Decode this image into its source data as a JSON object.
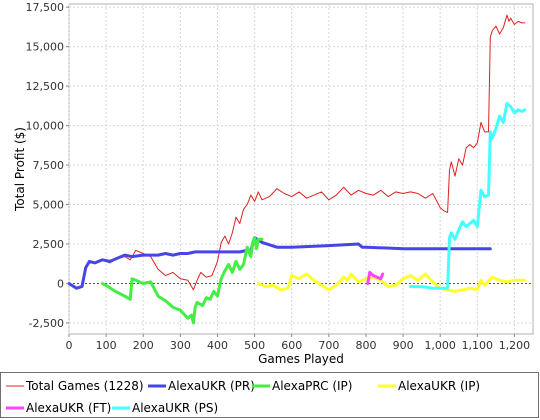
{
  "chart_data": {
    "type": "line",
    "title": "",
    "xlabel": "Games Played",
    "ylabel": "Total Profit ($)",
    "xlim": [
      0,
      1250
    ],
    "ylim": [
      -3200,
      17700
    ],
    "x_ticks": [
      0,
      100,
      200,
      300,
      400,
      500,
      600,
      700,
      800,
      900,
      1000,
      1100,
      1200
    ],
    "x_tick_labels": [
      "0",
      "100",
      "200",
      "300",
      "400",
      "500",
      "600",
      "700",
      "800",
      "900",
      "1,000",
      "1,100",
      "1,200"
    ],
    "y_ticks": [
      -2500,
      0,
      2500,
      5000,
      7500,
      10000,
      12500,
      15000,
      17500
    ],
    "y_tick_labels": [
      "-2,500",
      "0",
      "2,500",
      "5,000",
      "7,500",
      "10,000",
      "12,500",
      "15,000",
      "17,500"
    ],
    "grid": true,
    "zero_line_color": "#4040ff",
    "legend_position": "bottom",
    "series": [
      {
        "name": "Total Games (1228)",
        "color": "#e02020",
        "x": [
          0,
          20,
          35,
          45,
          55,
          70,
          90,
          110,
          130,
          150,
          165,
          180,
          200,
          220,
          240,
          260,
          280,
          300,
          320,
          335,
          345,
          355,
          370,
          385,
          400,
          410,
          420,
          430,
          440,
          450,
          460,
          470,
          480,
          490,
          500,
          510,
          520,
          540,
          560,
          580,
          600,
          620,
          640,
          660,
          680,
          700,
          720,
          740,
          760,
          780,
          800,
          820,
          840,
          860,
          880,
          900,
          920,
          940,
          960,
          980,
          1000,
          1010,
          1020,
          1025,
          1030,
          1040,
          1050,
          1060,
          1070,
          1080,
          1090,
          1100,
          1110,
          1120,
          1130,
          1135,
          1140,
          1150,
          1160,
          1170,
          1180,
          1185,
          1190,
          1200,
          1210,
          1220,
          1228
        ],
        "values": [
          0,
          -300,
          -200,
          1000,
          1400,
          1300,
          1500,
          1300,
          1600,
          1700,
          1500,
          2100,
          1900,
          1700,
          900,
          500,
          700,
          300,
          200,
          -400,
          200,
          700,
          400,
          500,
          1400,
          2600,
          3000,
          2500,
          3200,
          4200,
          3800,
          4700,
          5000,
          5600,
          5200,
          5800,
          5300,
          5500,
          6000,
          5700,
          5500,
          5800,
          5400,
          5600,
          5800,
          5300,
          5600,
          6100,
          5600,
          5900,
          5700,
          5600,
          5900,
          5500,
          5800,
          5700,
          5800,
          5700,
          5400,
          5700,
          4800,
          4600,
          4500,
          7200,
          7700,
          6800,
          7900,
          7500,
          8600,
          8800,
          8600,
          8900,
          10200,
          9600,
          9600,
          15600,
          16000,
          16300,
          15800,
          16200,
          17000,
          16600,
          16800,
          16400,
          16600,
          16500,
          16500
        ]
      },
      {
        "name": "AlexaUKR (PR)",
        "color": "#4646e8",
        "x": [
          0,
          20,
          35,
          45,
          55,
          70,
          90,
          110,
          130,
          150,
          170,
          200,
          240,
          260,
          280,
          300,
          320,
          340,
          360,
          380,
          400,
          420,
          440,
          460,
          480,
          490,
          500,
          520,
          560,
          600,
          700,
          780,
          790,
          800,
          900,
          1000,
          1100,
          1135
        ],
        "values": [
          0,
          -300,
          -200,
          1000,
          1400,
          1300,
          1500,
          1400,
          1600,
          1800,
          1700,
          1800,
          1800,
          1900,
          1800,
          1900,
          1900,
          2000,
          2000,
          2000,
          2000,
          2000,
          2000,
          2000,
          2100,
          2100,
          2900,
          2600,
          2300,
          2300,
          2400,
          2500,
          2300,
          2300,
          2200,
          2200,
          2200,
          2200
        ]
      },
      {
        "name": "AlexaPRC (IP)",
        "color": "#44ee44",
        "x": [
          90,
          105,
          125,
          150,
          165,
          170,
          180,
          200,
          220,
          240,
          260,
          280,
          300,
          320,
          330,
          335,
          340,
          345,
          360,
          370,
          380,
          390,
          400,
          410,
          420,
          430,
          440,
          450,
          460,
          470,
          480,
          490,
          495,
          500,
          505,
          510,
          520
        ],
        "values": [
          0,
          -200,
          -500,
          -800,
          -1000,
          300,
          200,
          0,
          100,
          -800,
          -1100,
          -1500,
          -1700,
          -2200,
          -2000,
          -2500,
          -1500,
          -1200,
          -1400,
          -900,
          -1000,
          -500,
          -800,
          300,
          800,
          1200,
          700,
          1400,
          900,
          1200,
          2300,
          1700,
          2600,
          2900,
          2200,
          2800,
          2800
        ]
      },
      {
        "name": "AlexaUKR (IP)",
        "color": "#ffff30",
        "x": [
          510,
          530,
          550,
          570,
          590,
          600,
          620,
          640,
          660,
          680,
          700,
          720,
          740,
          750,
          760,
          780,
          800,
          820,
          840,
          860,
          880,
          900,
          920,
          940,
          960,
          980,
          1000,
          1020,
          1040,
          1060,
          1080,
          1100,
          1110,
          1120,
          1140,
          1160,
          1180,
          1200,
          1228
        ],
        "values": [
          0,
          -200,
          -100,
          -400,
          -300,
          500,
          300,
          600,
          200,
          -100,
          -400,
          -100,
          400,
          200,
          600,
          100,
          300,
          400,
          200,
          -200,
          -100,
          300,
          500,
          200,
          600,
          100,
          -300,
          -400,
          -500,
          -400,
          -300,
          -400,
          200,
          -100,
          400,
          200,
          100,
          200,
          200
        ]
      },
      {
        "name": "AlexaUKR (FT)",
        "color": "#ff44ff",
        "x": [
          805,
          810,
          820,
          830,
          840,
          845
        ],
        "values": [
          0,
          700,
          500,
          400,
          300,
          600
        ]
      },
      {
        "name": "AlexaUKR (PS)",
        "color": "#44ffff",
        "x": [
          920,
          950,
          980,
          1000,
          1020,
          1025,
          1030,
          1040,
          1050,
          1060,
          1070,
          1080,
          1090,
          1100,
          1110,
          1120,
          1130,
          1135,
          1140,
          1150,
          1160,
          1170,
          1180,
          1190,
          1200,
          1210,
          1220,
          1228
        ],
        "values": [
          -200,
          -200,
          -300,
          -300,
          -300,
          2900,
          3200,
          2800,
          3400,
          3900,
          3600,
          3800,
          4000,
          3600,
          5900,
          5500,
          5600,
          9600,
          9200,
          9800,
          10600,
          10200,
          11400,
          11200,
          10800,
          11000,
          10900,
          11000
        ]
      }
    ]
  }
}
